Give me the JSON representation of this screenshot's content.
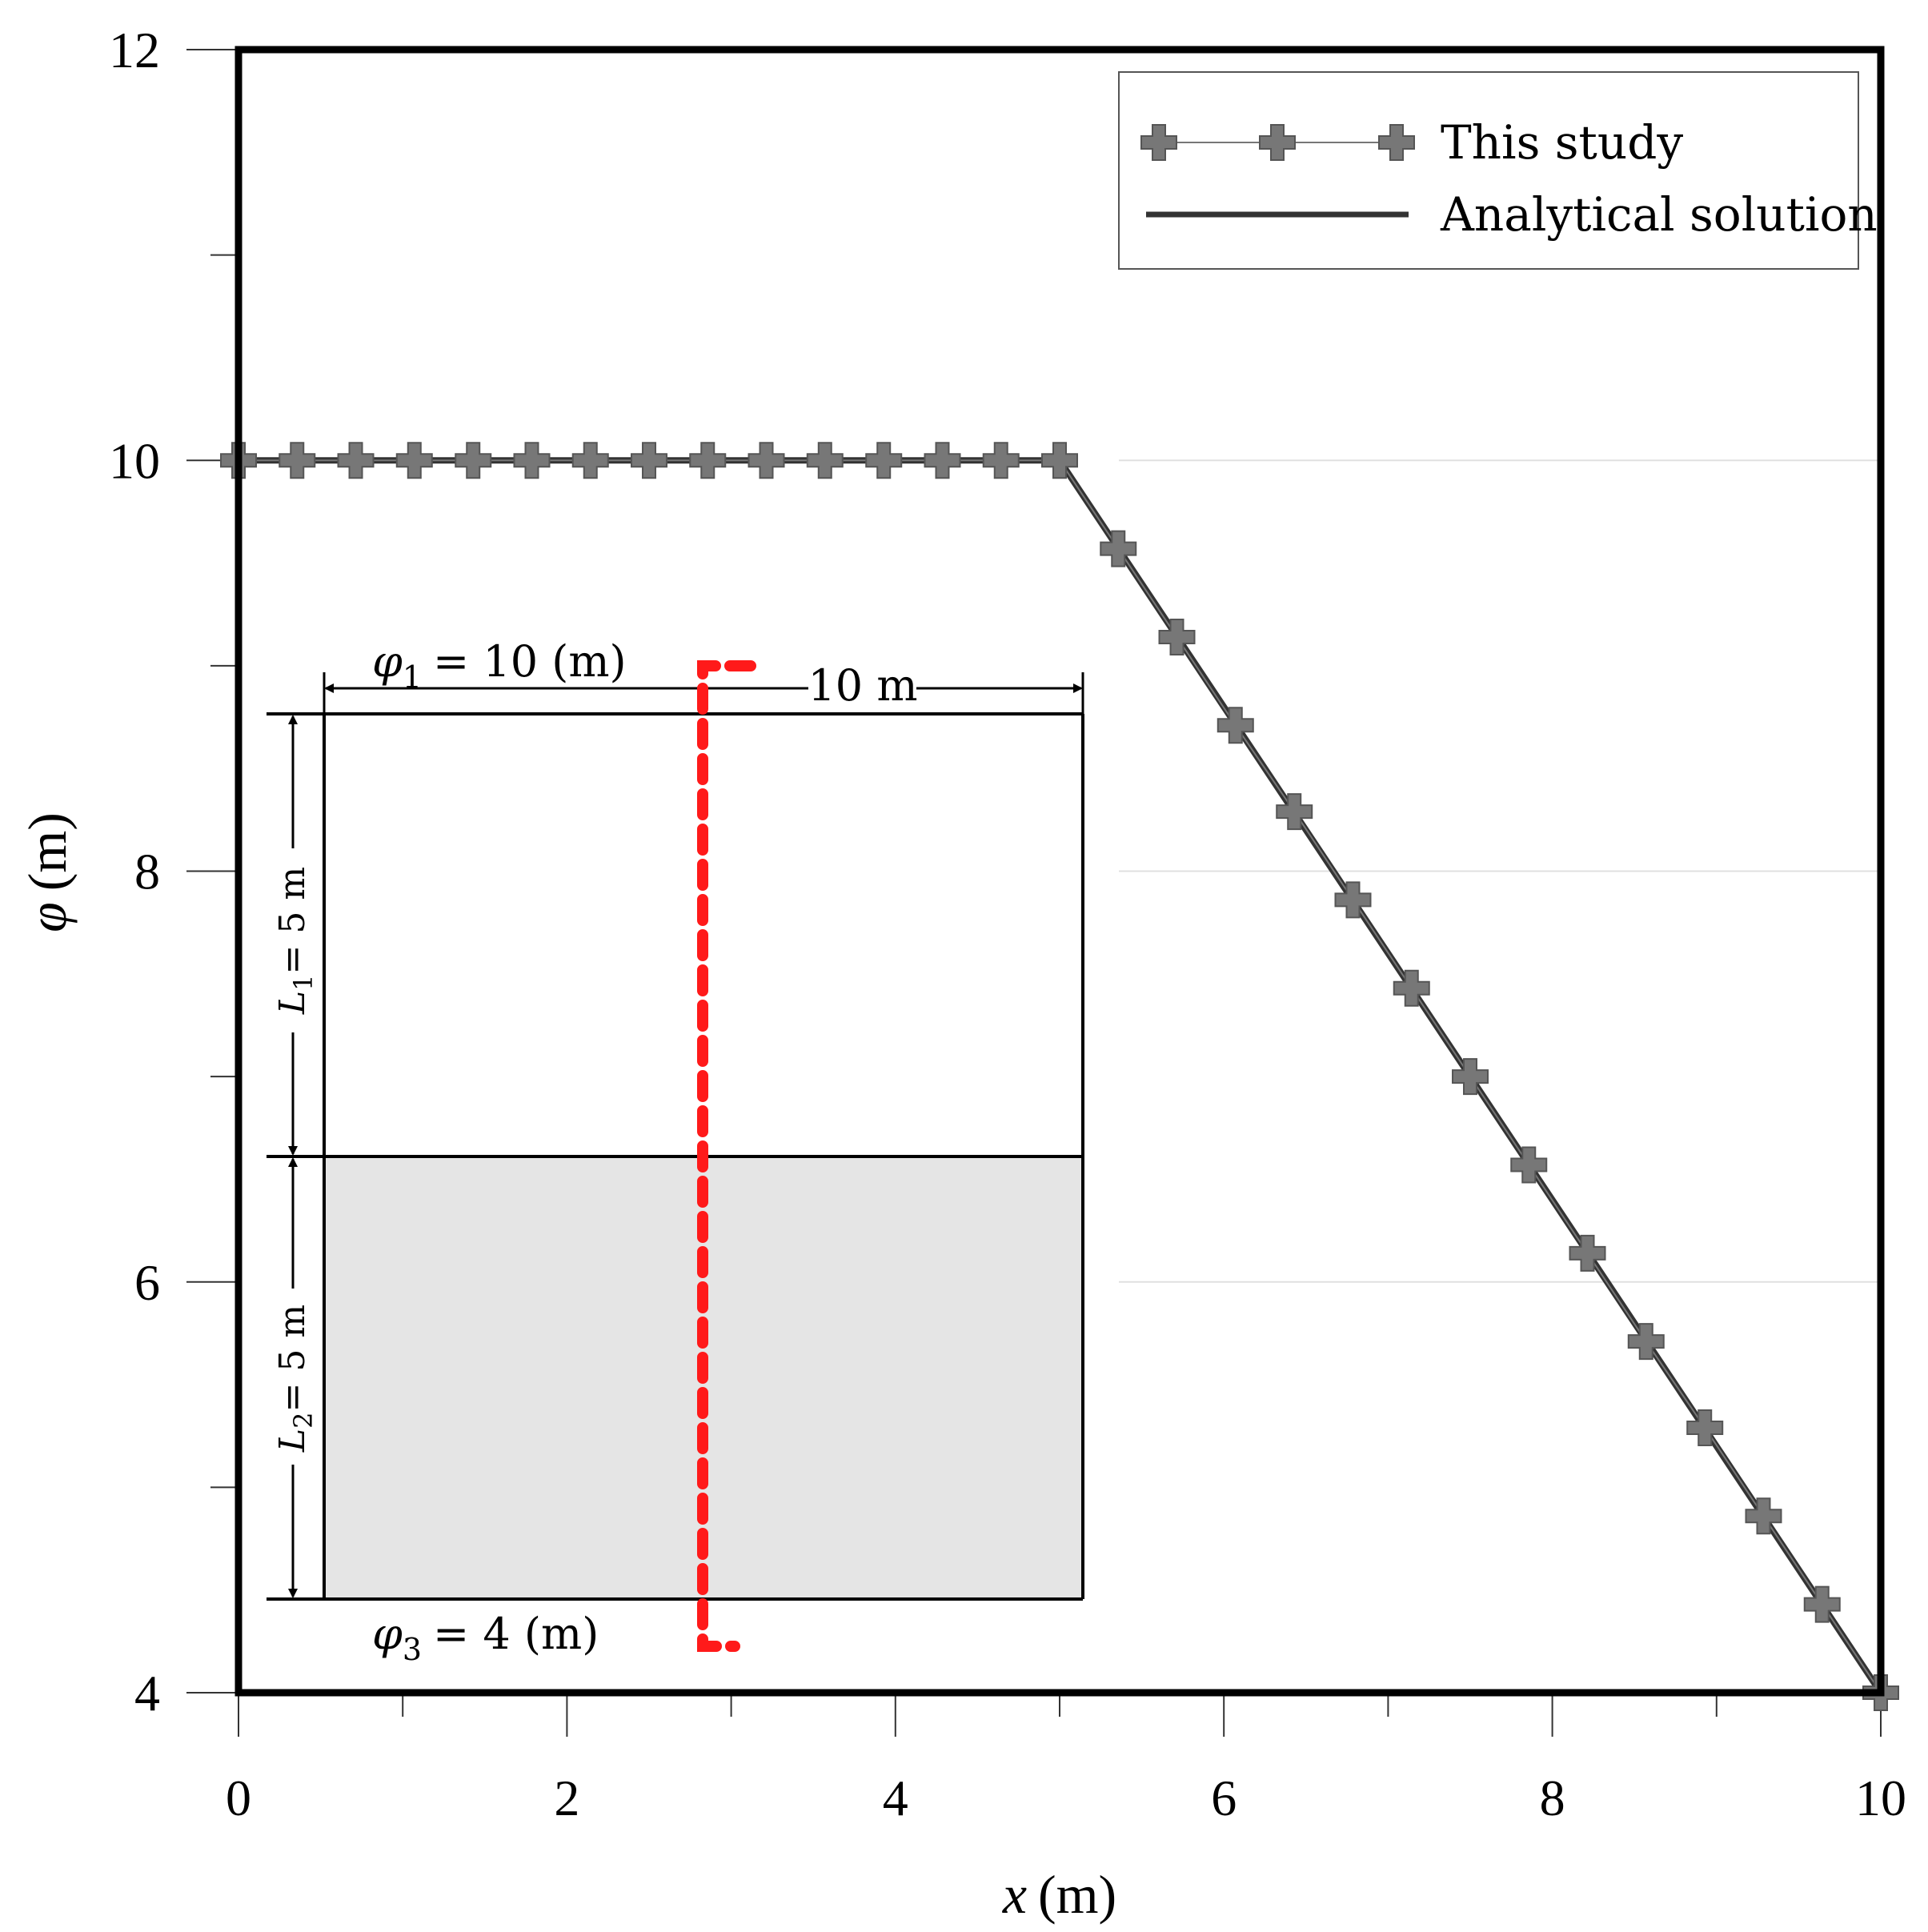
{
  "chart_data": {
    "type": "line",
    "xlabel_var": "x",
    "xlabel_unit": "(m)",
    "ylabel_var": "φ",
    "ylabel_unit": "(m)",
    "xlim": [
      0,
      10
    ],
    "ylim": [
      4,
      12
    ],
    "x_ticks": [
      0,
      2,
      4,
      6,
      8,
      10
    ],
    "y_ticks": [
      4,
      6,
      8,
      10,
      12
    ],
    "y_tick_labels": [
      "4",
      "6",
      "8",
      "10",
      "12"
    ],
    "legend_position": "top-right",
    "grid": "horizontal at y = 6, 8, 10 (right part only)",
    "series": [
      {
        "name": "This study",
        "style": "gray line with plus markers",
        "x": [
          0,
          0.357,
          0.714,
          1.071,
          1.429,
          1.786,
          2.143,
          2.5,
          2.857,
          3.214,
          3.571,
          3.929,
          4.286,
          4.643,
          5.0,
          5.357,
          5.714,
          6.071,
          6.429,
          6.786,
          7.143,
          7.5,
          7.857,
          8.214,
          8.571,
          8.929,
          9.286,
          9.643,
          10.0
        ],
        "y": [
          10,
          10,
          10,
          10,
          10,
          10,
          10,
          10,
          10,
          10,
          10,
          10,
          10,
          10,
          10,
          9.57,
          9.14,
          8.71,
          8.29,
          7.86,
          7.43,
          7.0,
          6.57,
          6.14,
          5.71,
          5.29,
          4.86,
          4.43,
          4.0
        ]
      },
      {
        "name": "Analytical solution",
        "style": "solid dark line",
        "x": [
          0,
          5,
          10
        ],
        "y": [
          10,
          10,
          4
        ]
      }
    ],
    "inset": {
      "top_label": {
        "var": "φ",
        "sub": "1",
        "value": "= 10 (m)"
      },
      "bottom_label": {
        "var": "φ",
        "sub": "3",
        "value": "= 4 (m)"
      },
      "width_label": "10 m",
      "layer1_label": {
        "var": "L",
        "sub": "1",
        "value": "= 5 m"
      },
      "layer2_label": {
        "var": "L",
        "sub": "2",
        "value": "= 5 m"
      }
    }
  },
  "colors": {
    "marker": "#777777",
    "marker_stroke": "#555555",
    "line": "#333333",
    "dashed_red": "#ff1a1a",
    "lower_layer_fill": "#e5e5e5",
    "grid": "#e0e0e0"
  }
}
